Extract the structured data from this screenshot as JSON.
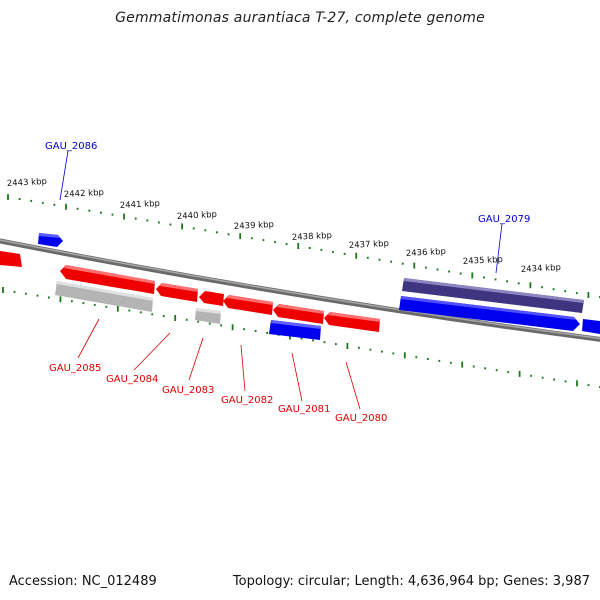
{
  "title": "Gemmatimonas aurantiaca T-27, complete genome",
  "accession_label": "Accession: NC_012489",
  "genome_info": "Topology: circular; Length: 4,636,964 bp; Genes: 3,987",
  "colors": {
    "forward_gene": "#0000ee",
    "reverse_gene": "#ee0000",
    "rna_gene": "#aaaaaa",
    "highlight_gene": "#3d3580",
    "backbone": "#808080",
    "tick": "#1a7a1a",
    "label_forward": "#0000cc",
    "label_reverse": "#dd0000"
  },
  "scale_labels": [
    "2443 kbp",
    "2442 kbp",
    "2441 kbp",
    "2440 kbp",
    "2439 kbp",
    "2438 kbp",
    "2437 kbp",
    "2436 kbp",
    "2435 kbp",
    "2434 kbp"
  ],
  "gene_labels": {
    "forward": [
      "GAU_2086",
      "GAU_2079"
    ],
    "reverse": [
      "GAU_2085",
      "GAU_2084",
      "GAU_2083",
      "GAU_2082",
      "GAU_2081",
      "GAU_2080"
    ]
  }
}
